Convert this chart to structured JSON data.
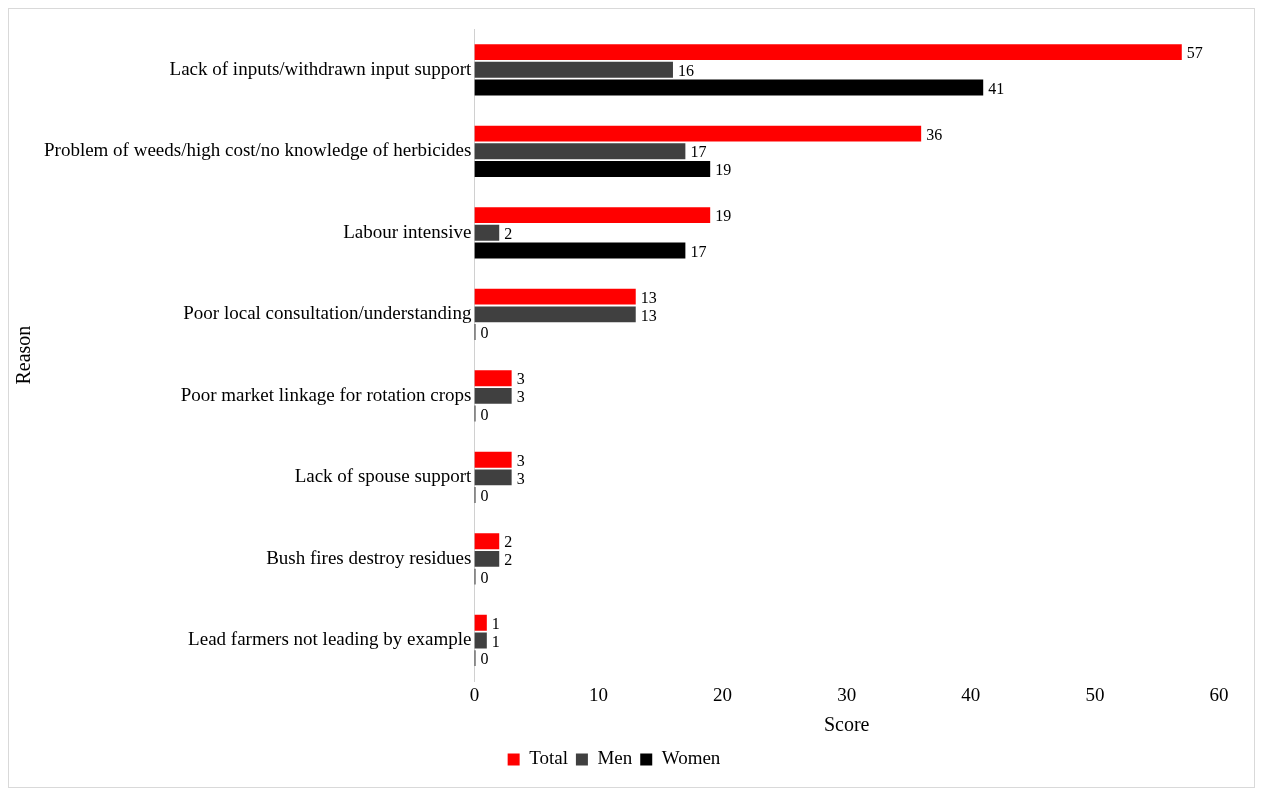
{
  "chart_data": {
    "type": "bar",
    "orientation": "horizontal",
    "categories": [
      "Lack of inputs/withdrawn input support",
      "Problem of weeds/high cost/no knowledge of herbicides",
      "Labour intensive",
      "Poor local consultation/understanding",
      "Poor market linkage for rotation crops",
      "Lack of spouse support",
      "Bush fires destroy residues",
      "Lead farmers not leading by example"
    ],
    "series": [
      {
        "name": "Total",
        "color": "#ff0000",
        "values": [
          57,
          36,
          19,
          13,
          3,
          3,
          2,
          1
        ]
      },
      {
        "name": "Men",
        "color": "#404040",
        "values": [
          16,
          17,
          2,
          13,
          3,
          3,
          2,
          1
        ]
      },
      {
        "name": "Women",
        "color": "#000000",
        "values": [
          41,
          19,
          17,
          0,
          0,
          0,
          0,
          0
        ]
      }
    ],
    "xlim": [
      0,
      60
    ],
    "xticks": [
      0,
      10,
      20,
      30,
      40,
      50,
      60
    ],
    "xlabel": "Score",
    "ylabel": "Reason",
    "data_labels": true,
    "grid": false,
    "legend": "bottom"
  }
}
